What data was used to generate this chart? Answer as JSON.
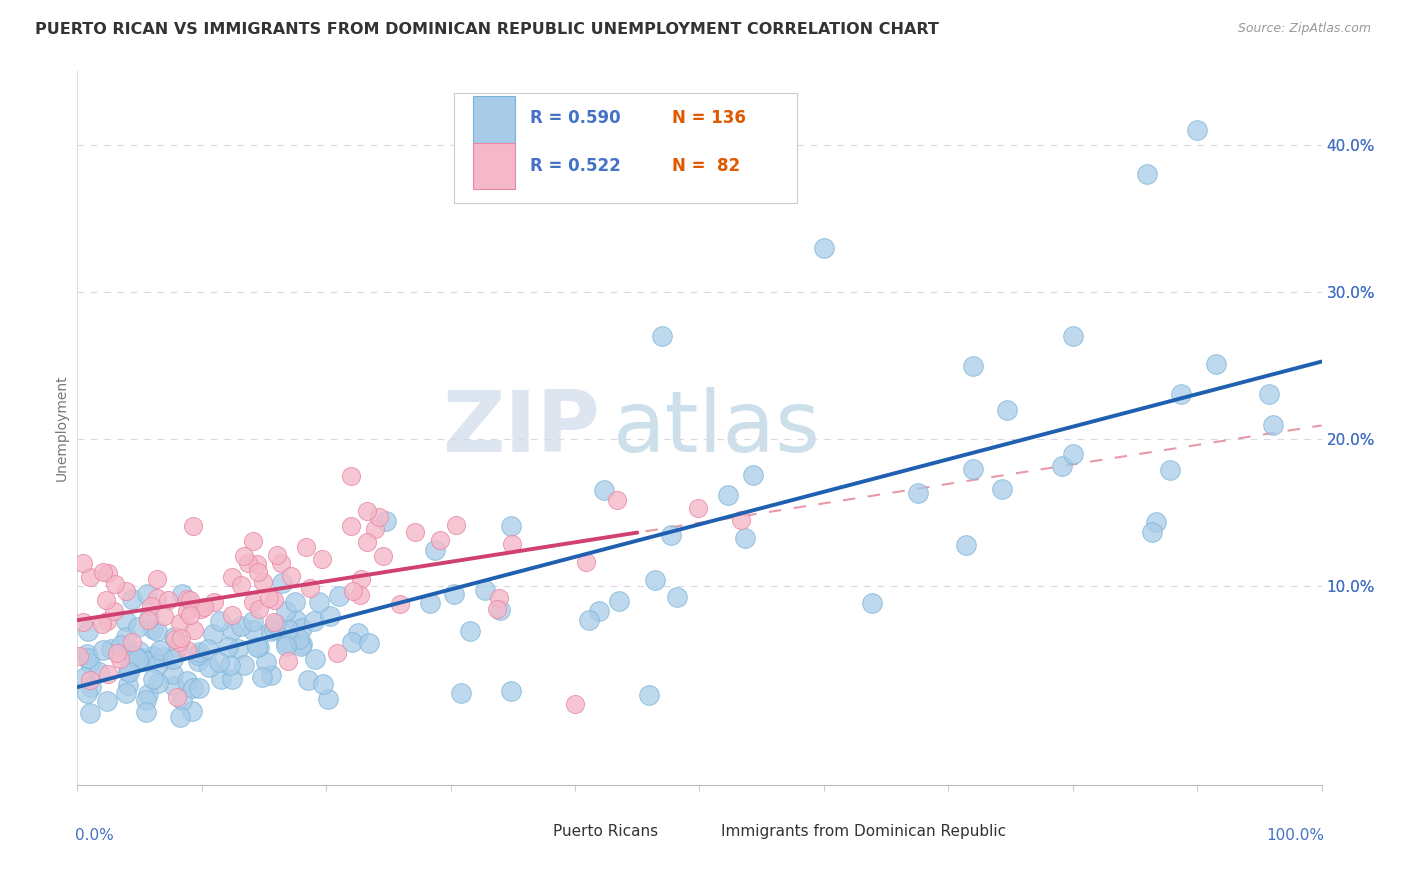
{
  "title": "PUERTO RICAN VS IMMIGRANTS FROM DOMINICAN REPUBLIC UNEMPLOYMENT CORRELATION CHART",
  "source": "Source: ZipAtlas.com",
  "ylabel": "Unemployment",
  "xmin": 0.0,
  "xmax": 1.0,
  "ymin": -0.035,
  "ymax": 0.45,
  "blue_R": "0.590",
  "blue_N": "136",
  "pink_R": "0.522",
  "pink_N": "82",
  "blue_scatter_color": "#a8cce8",
  "blue_edge_color": "#7ab3d8",
  "pink_scatter_color": "#f4b8c8",
  "pink_edge_color": "#e888a8",
  "blue_line_color": "#2060b0",
  "pink_line_color": "#d04070",
  "dashed_line_color": "#e08090",
  "grid_color": "#d8d8e8",
  "title_color": "#333333",
  "source_color": "#999999",
  "ytick_color": "#4472c4",
  "xlabel_color": "#4472c4",
  "watermark_zip_color": "#d0d8e8",
  "watermark_atlas_color": "#c8d8e0",
  "legend_border_color": "#cccccc",
  "legend_label_blue": "Puerto Ricans",
  "legend_label_pink": "Immigrants from Dominican Republic"
}
